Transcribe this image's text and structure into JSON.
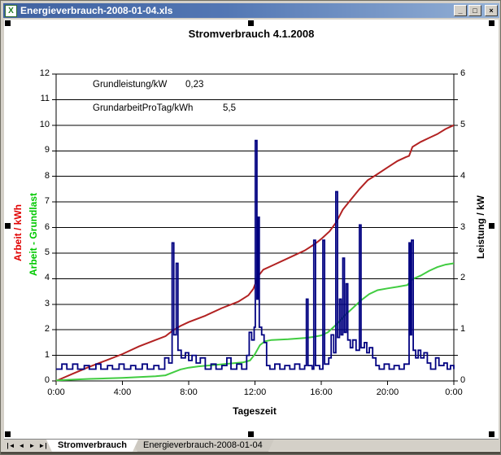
{
  "window": {
    "title": "Energieverbrauch-2008-01-04.xls",
    "controls": {
      "minimize": "_",
      "maximize": "□",
      "close": "×"
    }
  },
  "chart": {
    "title": "Stromverbrauch 4.1.2008",
    "annotations": [
      {
        "label": "Grundleistung/kW",
        "value": "0,23"
      },
      {
        "label": "GrundarbeitProTag/kWh",
        "value": "5,5"
      }
    ],
    "axes": {
      "left": {
        "labels": [
          "12",
          "11",
          "10",
          "9",
          "8",
          "7",
          "6",
          "5",
          "4",
          "3",
          "2",
          "1",
          "0"
        ],
        "titles": [
          {
            "text": "Arbeit / kWh",
            "color": "#e00000"
          },
          {
            "text": "Arbeit - Grundlast",
            "color": "#00c800"
          }
        ]
      },
      "right": {
        "labels": [
          "6",
          "5",
          "4",
          "3",
          "2",
          "1",
          "0"
        ],
        "title": "Leistung / kW"
      },
      "x": {
        "labels": [
          "0:00",
          "4:00",
          "8:00",
          "12:00",
          "16:00",
          "20:00",
          "0:00"
        ],
        "hours": [
          0,
          4,
          8,
          12,
          16,
          20,
          24
        ],
        "title": "Tageszeit"
      }
    }
  },
  "chart_data": {
    "type": "line",
    "title": "Stromverbrauch 4.1.2008",
    "xlabel": "Tageszeit",
    "xlim_hours": [
      0,
      24
    ],
    "left_axis": {
      "label": "Arbeit / kWh (und Arbeit - Grundlast)",
      "ylim": [
        0,
        12
      ]
    },
    "right_axis": {
      "label": "Leistung / kW",
      "ylim": [
        0,
        6
      ]
    },
    "grid": "horizontal",
    "annotations": {
      "Grundleistung/kW": 0.23,
      "GrundarbeitProTag/kWh": 5.5
    },
    "series": [
      {
        "name": "Arbeit / kWh",
        "color": "#b22222",
        "axis": "left",
        "interpolation": "linear",
        "width": 2,
        "points": [
          [
            0,
            0
          ],
          [
            1,
            0.28
          ],
          [
            2,
            0.55
          ],
          [
            3,
            0.8
          ],
          [
            4,
            1.05
          ],
          [
            5,
            1.35
          ],
          [
            6,
            1.6
          ],
          [
            6.6,
            1.75
          ],
          [
            7,
            1.95
          ],
          [
            7.5,
            2.15
          ],
          [
            8,
            2.3
          ],
          [
            9,
            2.55
          ],
          [
            10,
            2.85
          ],
          [
            11,
            3.1
          ],
          [
            11.6,
            3.35
          ],
          [
            11.9,
            3.6
          ],
          [
            12.2,
            4.1
          ],
          [
            12.5,
            4.35
          ],
          [
            13,
            4.5
          ],
          [
            14,
            4.8
          ],
          [
            15,
            5.1
          ],
          [
            15.6,
            5.35
          ],
          [
            16,
            5.55
          ],
          [
            16.5,
            5.85
          ],
          [
            16.9,
            6.2
          ],
          [
            17.3,
            6.7
          ],
          [
            17.8,
            7.1
          ],
          [
            18.3,
            7.5
          ],
          [
            18.8,
            7.85
          ],
          [
            19.3,
            8.05
          ],
          [
            20,
            8.35
          ],
          [
            20.6,
            8.6
          ],
          [
            21.1,
            8.75
          ],
          [
            21.3,
            8.8
          ],
          [
            21.5,
            9.15
          ],
          [
            22,
            9.35
          ],
          [
            22.5,
            9.5
          ],
          [
            23,
            9.65
          ],
          [
            23.5,
            9.85
          ],
          [
            24,
            10
          ]
        ]
      },
      {
        "name": "Arbeit - Grundlast",
        "color": "#41cc41",
        "axis": "left",
        "interpolation": "linear",
        "width": 2,
        "points": [
          [
            0,
            0.02
          ],
          [
            1,
            0.05
          ],
          [
            2,
            0.08
          ],
          [
            3,
            0.1
          ],
          [
            4,
            0.12
          ],
          [
            5,
            0.15
          ],
          [
            6,
            0.18
          ],
          [
            6.6,
            0.22
          ],
          [
            7,
            0.32
          ],
          [
            7.5,
            0.45
          ],
          [
            8,
            0.52
          ],
          [
            8.6,
            0.57
          ],
          [
            9.5,
            0.62
          ],
          [
            10.5,
            0.68
          ],
          [
            11.3,
            0.73
          ],
          [
            11.7,
            0.8
          ],
          [
            12,
            1.05
          ],
          [
            12.3,
            1.4
          ],
          [
            12.6,
            1.55
          ],
          [
            13,
            1.6
          ],
          [
            14,
            1.63
          ],
          [
            15,
            1.68
          ],
          [
            15.5,
            1.72
          ],
          [
            16,
            1.78
          ],
          [
            16.4,
            1.9
          ],
          [
            16.9,
            2.2
          ],
          [
            17.4,
            2.55
          ],
          [
            17.9,
            2.85
          ],
          [
            18.4,
            3.15
          ],
          [
            18.9,
            3.4
          ],
          [
            19.4,
            3.55
          ],
          [
            20,
            3.62
          ],
          [
            20.6,
            3.68
          ],
          [
            21.2,
            3.75
          ],
          [
            21.5,
            3.98
          ],
          [
            22,
            4.12
          ],
          [
            22.5,
            4.3
          ],
          [
            23,
            4.45
          ],
          [
            23.5,
            4.55
          ],
          [
            24,
            4.6
          ]
        ]
      },
      {
        "name": "Leistung / kW",
        "color": "#000080",
        "axis": "right",
        "interpolation": "step",
        "width": 1.8,
        "points": [
          [
            0,
            0.23
          ],
          [
            0.35,
            0.33
          ],
          [
            0.65,
            0.23
          ],
          [
            1,
            0.33
          ],
          [
            1.3,
            0.23
          ],
          [
            1.7,
            0.3
          ],
          [
            2,
            0.23
          ],
          [
            2.4,
            0.33
          ],
          [
            2.7,
            0.23
          ],
          [
            3.1,
            0.3
          ],
          [
            3.4,
            0.23
          ],
          [
            3.8,
            0.33
          ],
          [
            4.1,
            0.23
          ],
          [
            4.5,
            0.3
          ],
          [
            4.8,
            0.23
          ],
          [
            5.2,
            0.33
          ],
          [
            5.5,
            0.23
          ],
          [
            5.9,
            0.3
          ],
          [
            6.2,
            0.23
          ],
          [
            6.55,
            0.45
          ],
          [
            6.8,
            0.35
          ],
          [
            7,
            2.7
          ],
          [
            7.1,
            0.9
          ],
          [
            7.25,
            2.3
          ],
          [
            7.35,
            0.6
          ],
          [
            7.55,
            0.45
          ],
          [
            7.8,
            0.55
          ],
          [
            8,
            0.4
          ],
          [
            8.2,
            0.5
          ],
          [
            8.45,
            0.35
          ],
          [
            8.7,
            0.45
          ],
          [
            9,
            0.23
          ],
          [
            9.35,
            0.33
          ],
          [
            9.65,
            0.23
          ],
          [
            10,
            0.3
          ],
          [
            10.3,
            0.45
          ],
          [
            10.55,
            0.23
          ],
          [
            10.9,
            0.33
          ],
          [
            11.2,
            0.23
          ],
          [
            11.5,
            0.5
          ],
          [
            11.65,
            0.95
          ],
          [
            11.8,
            0.8
          ],
          [
            11.95,
            1.05
          ],
          [
            12.02,
            4.7
          ],
          [
            12.12,
            1.6
          ],
          [
            12.18,
            3.2
          ],
          [
            12.26,
            1.05
          ],
          [
            12.4,
            0.9
          ],
          [
            12.55,
            0.75
          ],
          [
            12.7,
            0.3
          ],
          [
            12.9,
            0.23
          ],
          [
            13.2,
            0.33
          ],
          [
            13.5,
            0.23
          ],
          [
            13.8,
            0.3
          ],
          [
            14.1,
            0.23
          ],
          [
            14.4,
            0.33
          ],
          [
            14.7,
            0.23
          ],
          [
            15,
            0.3
          ],
          [
            15.1,
            1.6
          ],
          [
            15.2,
            0.3
          ],
          [
            15.45,
            0.23
          ],
          [
            15.55,
            2.75
          ],
          [
            15.65,
            0.3
          ],
          [
            15.9,
            0.23
          ],
          [
            16.1,
            2.75
          ],
          [
            16.2,
            0.33
          ],
          [
            16.45,
            0.45
          ],
          [
            16.6,
            0.9
          ],
          [
            16.75,
            0.55
          ],
          [
            16.88,
            3.7
          ],
          [
            16.98,
            0.85
          ],
          [
            17.1,
            1.6
          ],
          [
            17.2,
            0.9
          ],
          [
            17.3,
            2.4
          ],
          [
            17.4,
            0.95
          ],
          [
            17.5,
            1.9
          ],
          [
            17.6,
            0.8
          ],
          [
            17.75,
            0.65
          ],
          [
            17.9,
            0.8
          ],
          [
            18.1,
            0.6
          ],
          [
            18.3,
            3.05
          ],
          [
            18.4,
            0.65
          ],
          [
            18.6,
            0.75
          ],
          [
            18.75,
            0.55
          ],
          [
            18.9,
            0.65
          ],
          [
            19.1,
            0.45
          ],
          [
            19.3,
            0.3
          ],
          [
            19.5,
            0.23
          ],
          [
            19.8,
            0.33
          ],
          [
            20.1,
            0.23
          ],
          [
            20.4,
            0.3
          ],
          [
            20.7,
            0.23
          ],
          [
            21,
            0.33
          ],
          [
            21.3,
            2.7
          ],
          [
            21.38,
            0.9
          ],
          [
            21.45,
            2.75
          ],
          [
            21.55,
            0.6
          ],
          [
            21.7,
            0.45
          ],
          [
            21.85,
            0.6
          ],
          [
            22,
            0.45
          ],
          [
            22.2,
            0.55
          ],
          [
            22.4,
            0.35
          ],
          [
            22.6,
            0.23
          ],
          [
            22.9,
            0.45
          ],
          [
            23.1,
            0.3
          ],
          [
            23.4,
            0.35
          ],
          [
            23.6,
            0.23
          ],
          [
            23.8,
            0.3
          ],
          [
            24,
            0.23
          ]
        ]
      }
    ]
  },
  "tabs": {
    "nav": [
      "|◄",
      "◄",
      "►",
      "►|"
    ],
    "items": [
      {
        "label": "Stromverbrauch",
        "active": true
      },
      {
        "label": "Energieverbrauch-2008-01-04",
        "active": false
      }
    ]
  }
}
